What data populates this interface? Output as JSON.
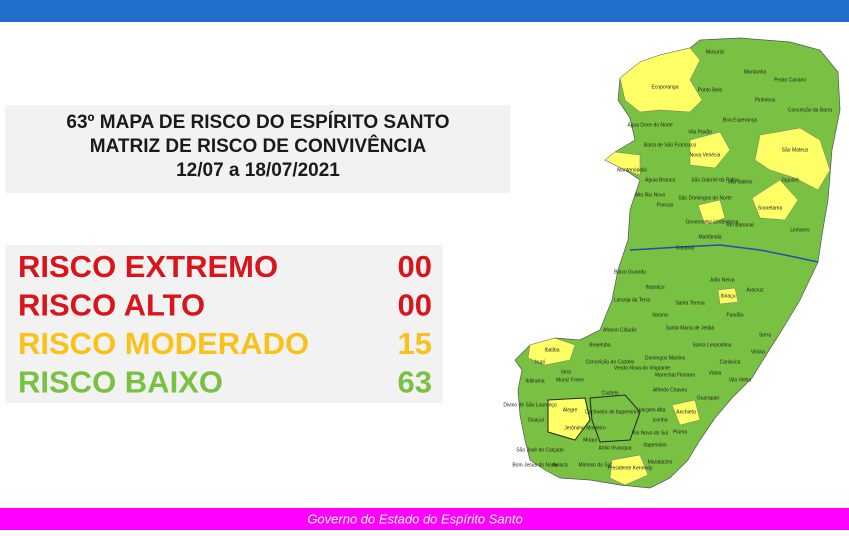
{
  "title_lines": [
    "63º MAPA DE RISCO DO ESPÍRITO SANTO",
    "MATRIZ DE RISCO DE CONVIVÊNCIA",
    "12/07 a 18/07/2021"
  ],
  "risks": [
    {
      "label": "RISCO EXTREMO",
      "count": "00"
    },
    {
      "label": "RISCO ALTO",
      "count": "00"
    },
    {
      "label": "RISCO MODERADO",
      "count": "15"
    },
    {
      "label": "RISCO BAIXO",
      "count": "63"
    }
  ],
  "map": {
    "labels": [
      "Mucurici",
      "Montanha",
      "Pedro Canário",
      "Ecoporanga",
      "Ponto Belo",
      "Pinheiros",
      "Conceição da Barra",
      "Boa Esperança",
      "Água Doce do Norte",
      "Barra de São Francisco",
      "Vila Pavão",
      "Nova Venécia",
      "São Mateus",
      "Mantenópolis",
      "Águia Branca",
      "São Gabriel da Palha",
      "Vila Valério",
      "Jaguaré",
      "Alto Rio Novo",
      "Sooretama",
      "São Domingos do Norte",
      "Pancas",
      "Governador Lindenberg",
      "Rio Bananal",
      "Linhares",
      "Marilândia",
      "Colatina",
      "Baixo Guandu",
      "João Neiva",
      "Ibiraçu",
      "Aracruz",
      "Itaguaçu",
      "Laranja da Terra",
      "Santa Teresa",
      "Fundão",
      "Itarana",
      "Afonso Cláudio",
      "Santa Maria de Jetibá",
      "Serra",
      "Santa Leopoldina",
      "Brejetuba",
      "Ibatiba",
      "Cariacica",
      "Vitória",
      "Domingos Martins",
      "Conceição do Castelo",
      "Venda Nova do Imigrante",
      "Irupi",
      "Iúna",
      "Viana",
      "Marechal Floriano",
      "Vila Velha",
      "Ibitirama",
      "Muniz Freire",
      "Alfredo Chaves",
      "Castelo",
      "Guarapari",
      "Divino de São Lourenço",
      "Alegre",
      "Cachoeiro de Itapemirim",
      "Vargem Alta",
      "Guaçuí",
      "Anchieta",
      "Iconha",
      "Jerônimo Monteiro",
      "Rio Novo do Sul",
      "Piúma",
      "São José do Calçado",
      "Muqui",
      "Atílio Vivacqua",
      "Itapemirim",
      "Bom Jesus do Norte",
      "Apiacá",
      "Mimoso do Sul",
      "Presidente Kennedy",
      "Marataízes"
    ]
  },
  "footer": "Governo do Estado do Espírito Santo"
}
